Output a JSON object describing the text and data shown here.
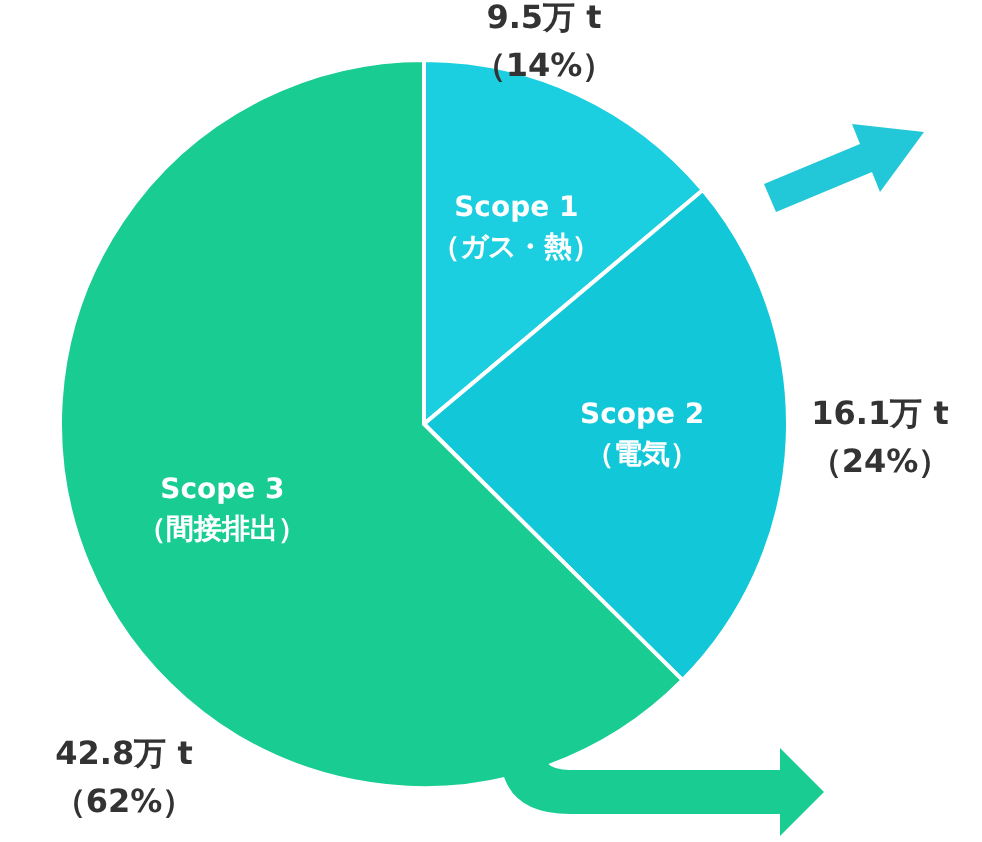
{
  "chart_data": {
    "type": "pie",
    "categories": [
      "Scope 1（ガス・熱）",
      "Scope 2（電気）",
      "Scope 3（間接排出）"
    ],
    "values": [
      9.5,
      16.1,
      42.8
    ],
    "value_labels": [
      "9.5万 t（14%）",
      "16.1万 t（24%）",
      "42.8万 t（62%）"
    ],
    "colors": [
      "#1ccfe0",
      "#12c8d8",
      "#18cc92"
    ]
  }
}
